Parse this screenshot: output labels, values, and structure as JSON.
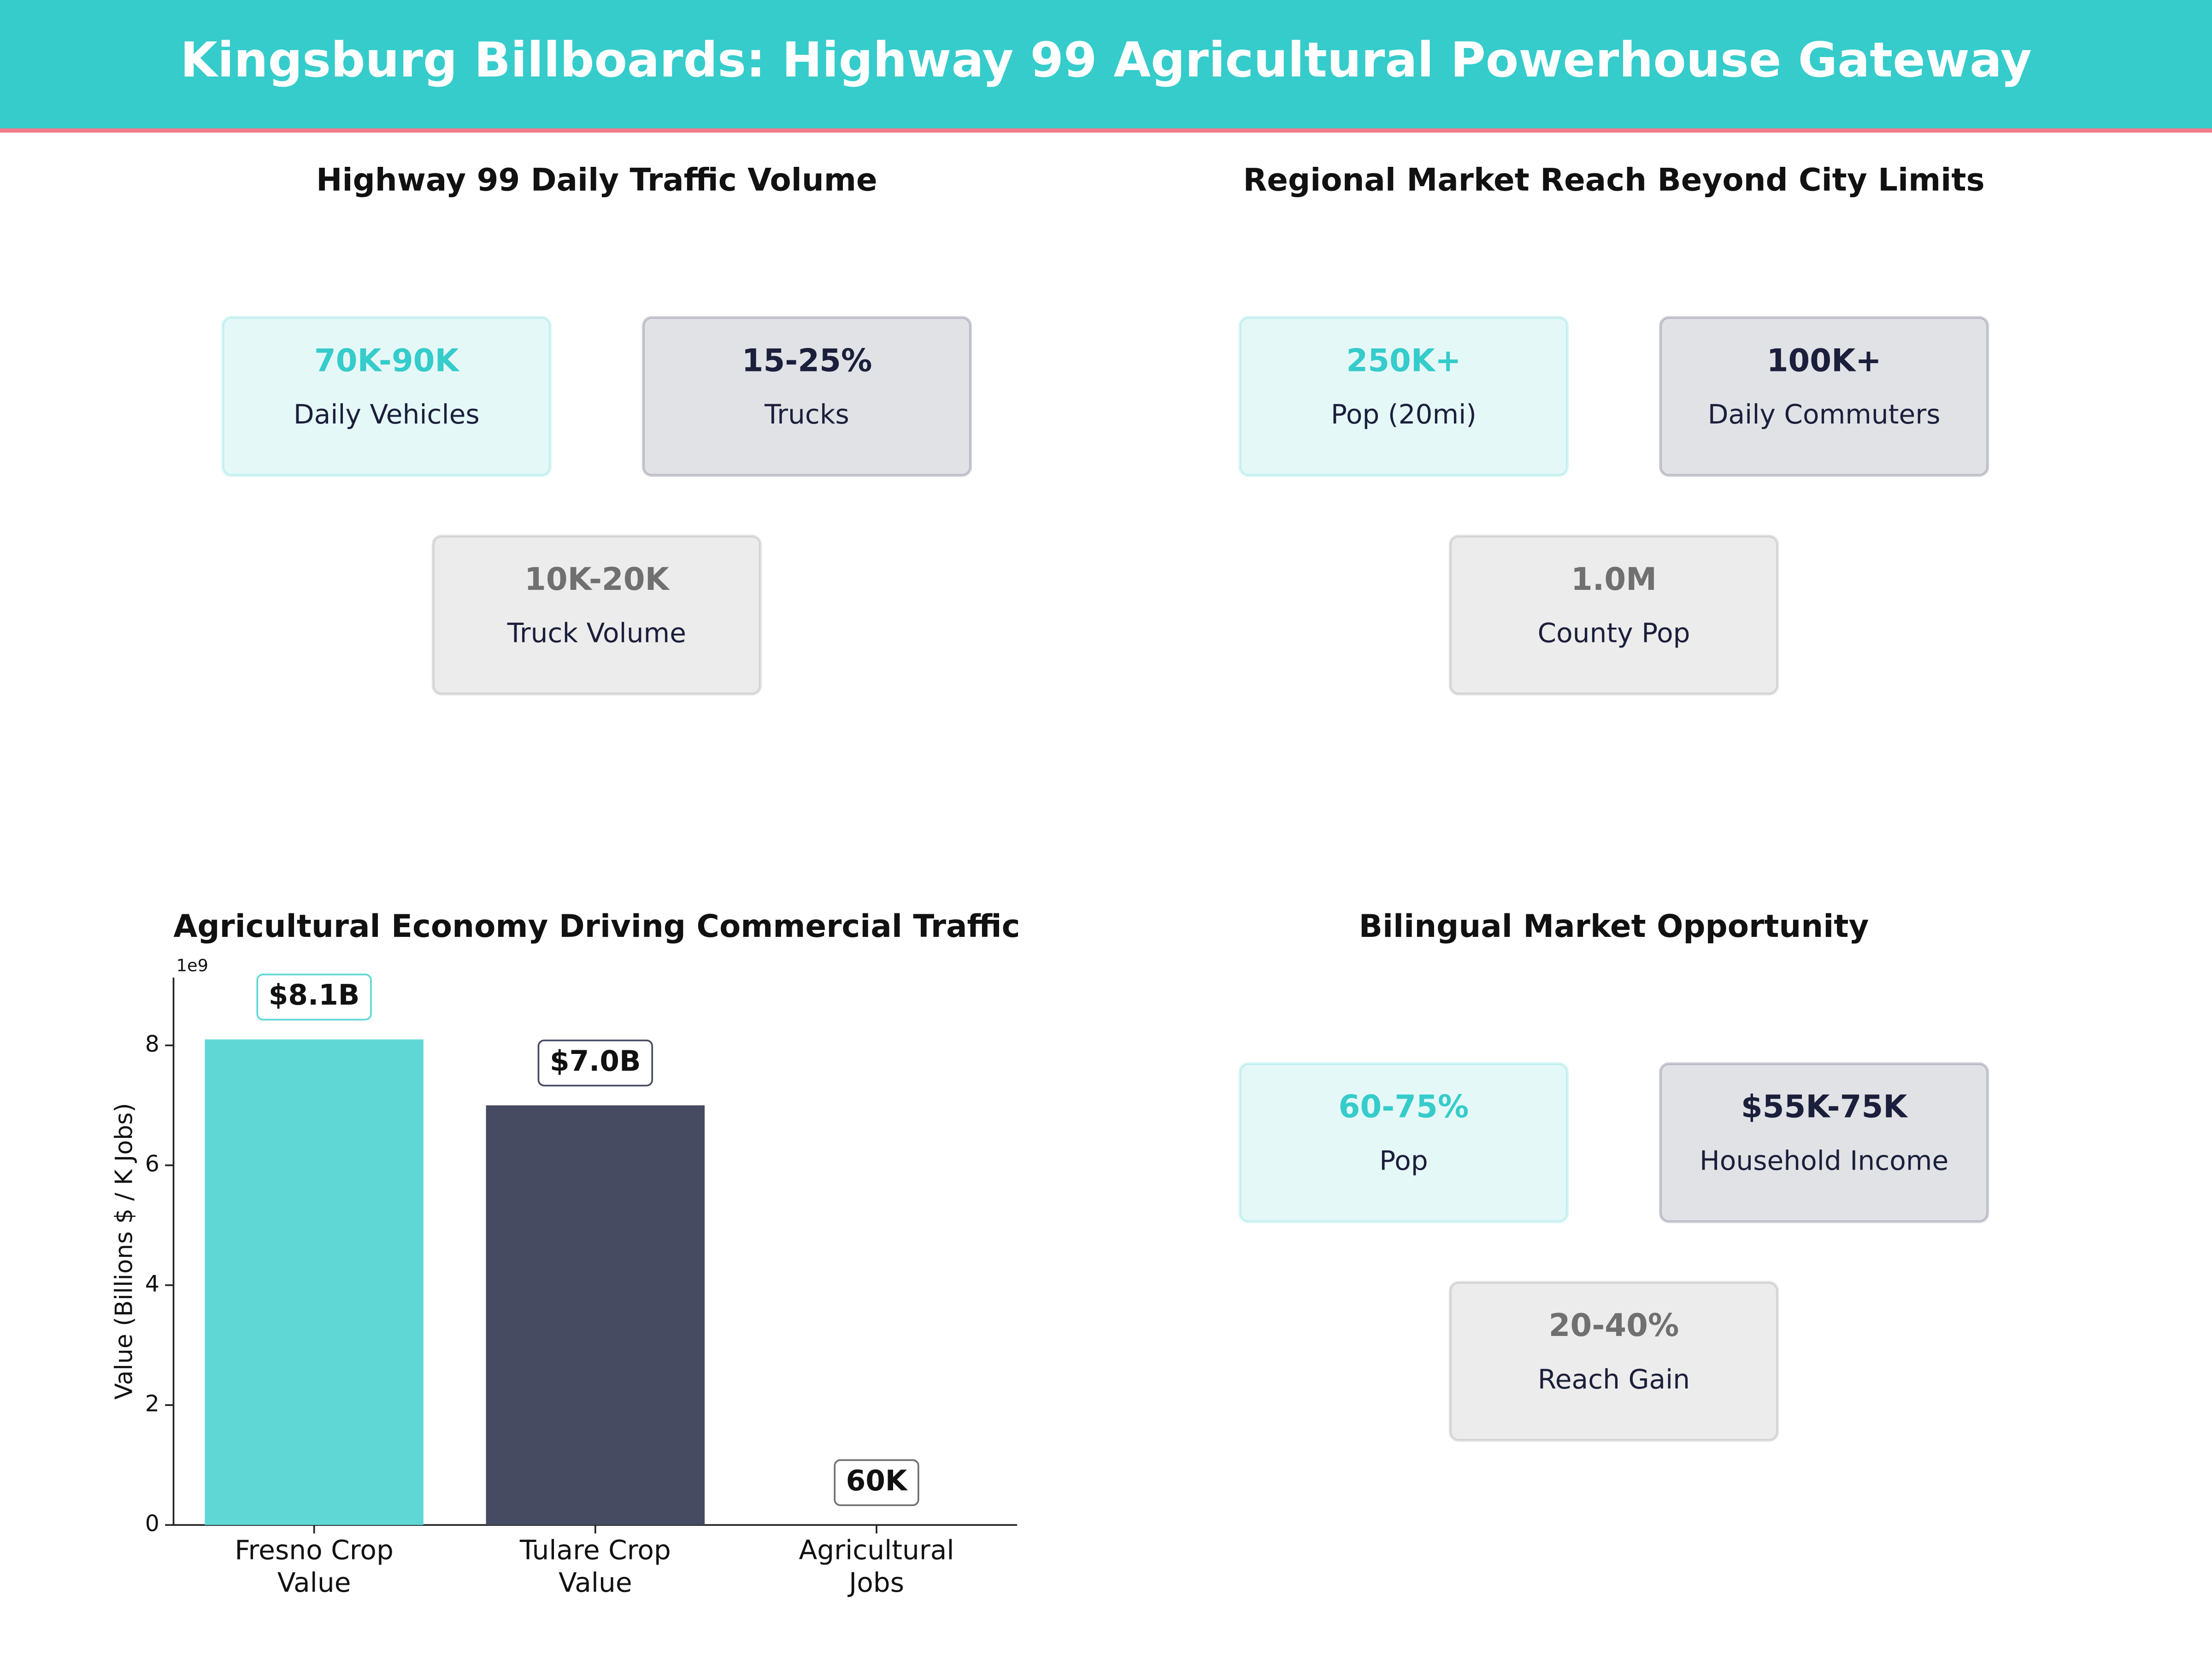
{
  "header": {
    "title": "Kingsburg Billboards: Highway 99 Agricultural Powerhouse Gateway"
  },
  "panels": [
    {
      "title": "Highway 99 Daily Traffic Volume",
      "cards": [
        {
          "value": "70K-90K",
          "label": "Daily Vehicles",
          "color": "#35cccb"
        },
        {
          "value": "15-25%",
          "label": "Trucks",
          "color": "#1b1f3b"
        },
        {
          "value": "10K-20K",
          "label": "Truck Volume",
          "color": "#707070"
        }
      ]
    },
    {
      "title": "Regional Market Reach Beyond City Limits",
      "cards": [
        {
          "value": "250K+",
          "label": "Pop (20mi)",
          "color": "#35cccb"
        },
        {
          "value": "100K+",
          "label": "Daily Commuters",
          "color": "#1b1f3b"
        },
        {
          "value": "1.0M",
          "label": "County Pop",
          "color": "#707070"
        }
      ]
    },
    {
      "title": "Bilingual Market Opportunity",
      "cards": [
        {
          "value": "60-75%",
          "label": "Pop",
          "color": "#35cccb"
        },
        {
          "value": "$55K-75K",
          "label": "Household Income",
          "color": "#1b1f3b"
        },
        {
          "value": "20-40%",
          "label": "Reach Gain",
          "color": "#707070"
        }
      ]
    }
  ],
  "chart_data": {
    "type": "bar",
    "title": "Agricultural Economy Driving Commercial Traffic",
    "y_label": "Value (Billions $ / K Jobs)",
    "y_offset_label": "1e9",
    "categories": [
      "Fresno Crop\nValue",
      "Tulare Crop\nValue",
      "Agricultural\nJobs"
    ],
    "values": [
      8100000000,
      7000000000,
      60000
    ],
    "value_labels": [
      "$8.1B",
      "$7.0B",
      "60K"
    ],
    "colors": [
      "#5fd8d5",
      "#464b62",
      "#707070"
    ],
    "ylim": [
      0,
      9130000000
    ],
    "yticks": [
      {
        "value": 0,
        "label": "0"
      },
      {
        "value": 2000000000,
        "label": "2"
      },
      {
        "value": 4000000000,
        "label": "4"
      },
      {
        "value": 6000000000,
        "label": "6"
      },
      {
        "value": 8000000000,
        "label": "8"
      }
    ]
  }
}
